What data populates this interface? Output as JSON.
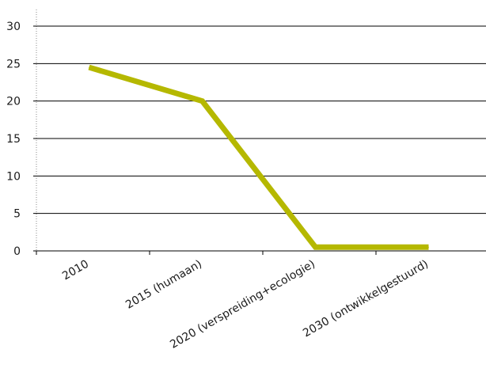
{
  "chart_data": {
    "type": "line",
    "categories": [
      "2010",
      "2015 (humaan)",
      "2020 (verspreiding+ecologie)",
      "2030 (ontwikkelgestuurd)"
    ],
    "series": [
      {
        "values": [
          24.5,
          20,
          0.5,
          0.5
        ],
        "color": "#b5b800"
      }
    ],
    "yticks": [
      "0",
      "5",
      "10",
      "15",
      "20",
      "25",
      "30"
    ],
    "ylim": [
      0,
      30
    ],
    "grid": true,
    "legend": "none",
    "title": "",
    "xlabel": "",
    "ylabel": ""
  }
}
